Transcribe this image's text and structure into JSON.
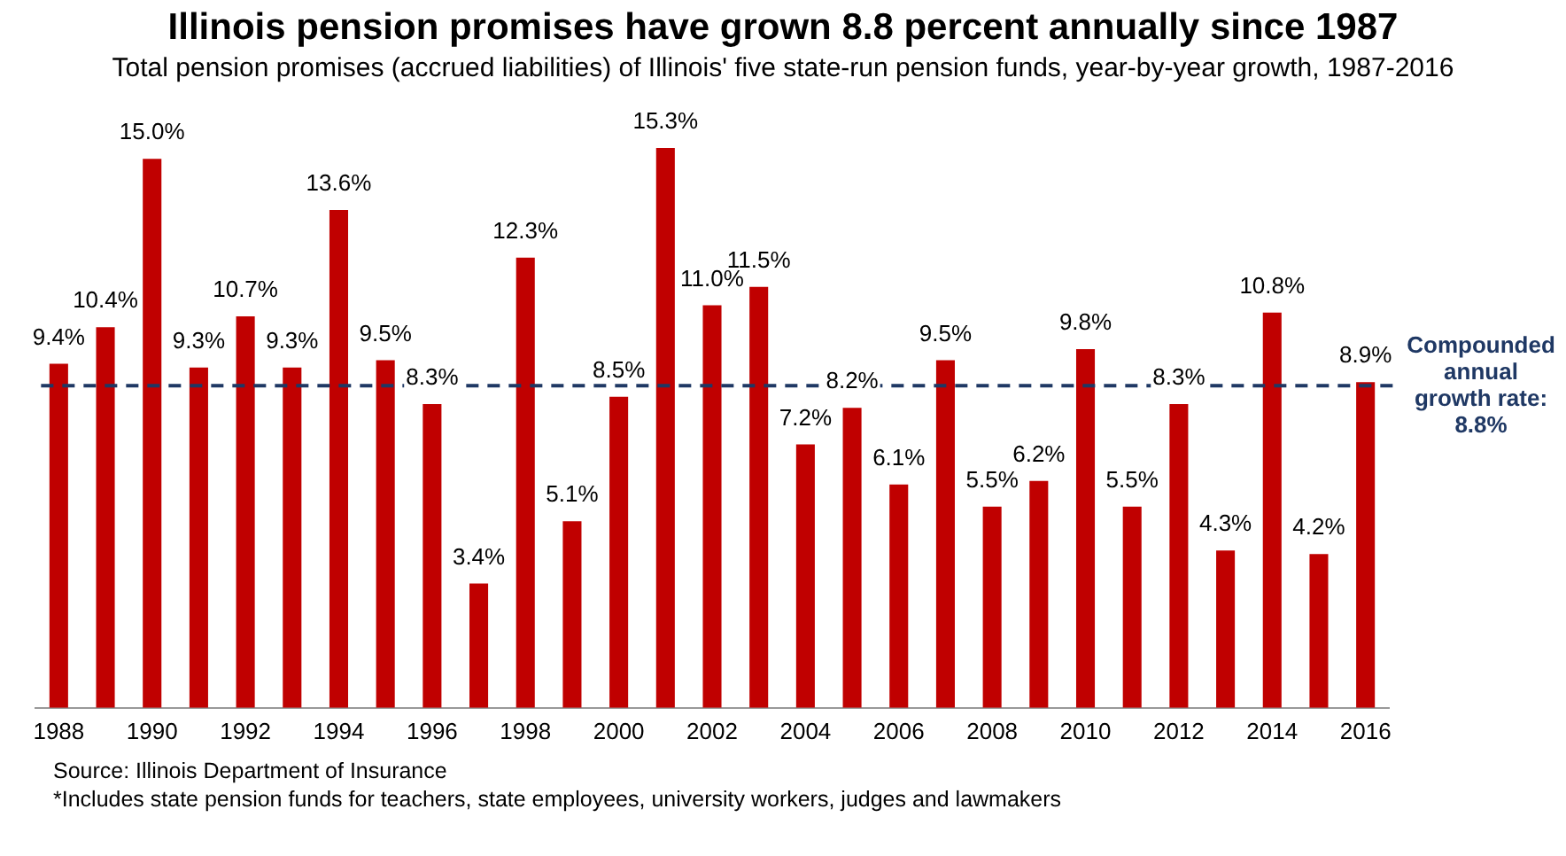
{
  "chart_data": {
    "type": "bar",
    "title": "Illinois pension promises have grown 8.8 percent annually since 1987",
    "subtitle": "Total pension promises (accrued liabilities) of Illinois' five state-run pension funds, year-by-year growth, 1987-2016",
    "categories": [
      "1988",
      null,
      "1990",
      null,
      "1992",
      null,
      "1994",
      null,
      "1996",
      null,
      "1998",
      null,
      "2000",
      null,
      "2002",
      null,
      "2004",
      null,
      "2006",
      null,
      "2008",
      null,
      "2010",
      null,
      "2012",
      null,
      "2014",
      null,
      "2016"
    ],
    "values": [
      9.4,
      10.4,
      15.0,
      9.3,
      10.7,
      9.3,
      13.6,
      9.5,
      8.3,
      3.4,
      12.3,
      5.1,
      8.5,
      15.3,
      11.0,
      11.5,
      7.2,
      8.2,
      6.1,
      9.5,
      5.5,
      6.2,
      9.8,
      5.5,
      8.3,
      4.3,
      10.8,
      4.2,
      8.9
    ],
    "value_labels": [
      "9.4%",
      "10.4%",
      "15.0%",
      "9.3%",
      "10.7%",
      "9.3%",
      "13.6%",
      "9.5%",
      "8.3%",
      "3.4%",
      "12.3%",
      "5.1%",
      "8.5%",
      "15.3%",
      "11.0%",
      "11.5%",
      "7.2%",
      "8.2%",
      "6.1%",
      "9.5%",
      "5.5%",
      "6.2%",
      "9.8%",
      "5.5%",
      "8.3%",
      "4.3%",
      "10.8%",
      "4.2%",
      "8.9%"
    ],
    "color": "#c00000",
    "ref_lines": [
      {
        "axis": "y",
        "value": 8.8,
        "label": "Compounded annual growth rate: 8.8%",
        "color": "#1f3864",
        "line_style": "dashed"
      }
    ],
    "annotations": [
      "Source: Illinois Department of Insurance",
      "*Includes state pension funds for teachers, state employees, university workers, judges and lawmakers"
    ],
    "grid": false,
    "legend": false,
    "tick_labels": "x"
  }
}
